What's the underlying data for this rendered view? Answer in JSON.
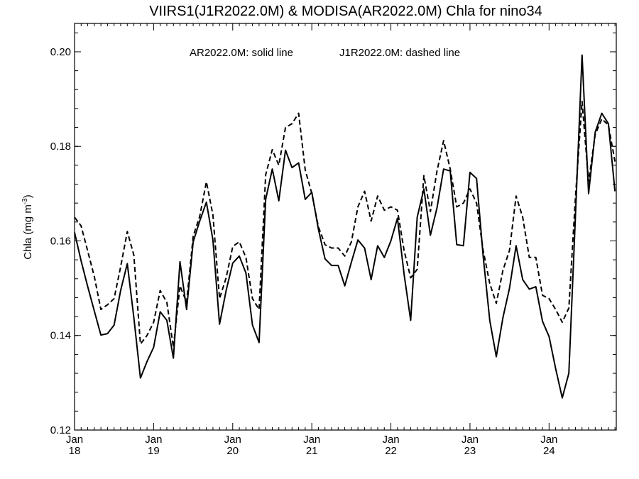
{
  "chart_data": {
    "type": "line",
    "title": "VIIRS1(J1R2022.0M) & MODISA(AR2022.0M)  Chla for nino34",
    "annotation_left": "AR2022.0M: solid line",
    "annotation_right": "J1R2022.0M: dashed line",
    "ylabel": "Chla (mg m",
    "ylabel_sup": "-3",
    "ylabel_close": ")",
    "ylim": [
      0.12,
      0.206
    ],
    "xlim": [
      2018.0,
      2024.85
    ],
    "yticks": [
      0.12,
      0.14,
      0.16,
      0.18,
      0.2
    ],
    "ytick_labels": [
      "0.12",
      "0.14",
      "0.16",
      "0.18",
      "0.20"
    ],
    "xticks": [
      {
        "x": 2018,
        "line1": "Jan",
        "line2": "18"
      },
      {
        "x": 2019,
        "line1": "Jan",
        "line2": "19"
      },
      {
        "x": 2020,
        "line1": "Jan",
        "line2": "20"
      },
      {
        "x": 2021,
        "line1": "Jan",
        "line2": "21"
      },
      {
        "x": 2022,
        "line1": "Jan",
        "line2": "22"
      },
      {
        "x": 2023,
        "line1": "Jan",
        "line2": "23"
      },
      {
        "x": 2024,
        "line1": "Jan",
        "line2": "24"
      }
    ],
    "series": [
      {
        "style": "solid",
        "x": [
          2018.0,
          2018.083,
          2018.167,
          2018.25,
          2018.333,
          2018.417,
          2018.5,
          2018.583,
          2018.667,
          2018.75,
          2018.833,
          2018.917,
          2019.0,
          2019.083,
          2019.167,
          2019.25,
          2019.333,
          2019.417,
          2019.5,
          2019.583,
          2019.667,
          2019.75,
          2019.833,
          2019.917,
          2020.0,
          2020.083,
          2020.167,
          2020.25,
          2020.333,
          2020.417,
          2020.5,
          2020.583,
          2020.667,
          2020.75,
          2020.833,
          2020.917,
          2021.0,
          2021.083,
          2021.167,
          2021.25,
          2021.333,
          2021.417,
          2021.5,
          2021.583,
          2021.667,
          2021.75,
          2021.833,
          2021.917,
          2022.0,
          2022.083,
          2022.167,
          2022.25,
          2022.333,
          2022.417,
          2022.5,
          2022.583,
          2022.667,
          2022.75,
          2022.833,
          2022.917,
          2023.0,
          2023.083,
          2023.167,
          2023.25,
          2023.333,
          2023.417,
          2023.5,
          2023.583,
          2023.667,
          2023.75,
          2023.833,
          2023.917,
          2024.0,
          2024.083,
          2024.167,
          2024.25,
          2024.333,
          2024.417,
          2024.5,
          2024.583,
          2024.667,
          2024.75,
          2024.833
        ],
        "y": [
          0.1618,
          0.1558,
          0.1503,
          0.1452,
          0.1401,
          0.1404,
          0.1422,
          0.1495,
          0.1552,
          0.1438,
          0.131,
          0.1345,
          0.1375,
          0.145,
          0.1432,
          0.1352,
          0.1556,
          0.1455,
          0.1598,
          0.1642,
          0.1682,
          0.1602,
          0.1424,
          0.1495,
          0.1553,
          0.1568,
          0.1532,
          0.1422,
          0.1385,
          0.1688,
          0.1752,
          0.1685,
          0.1792,
          0.1755,
          0.1765,
          0.1688,
          0.1703,
          0.1625,
          0.1562,
          0.1548,
          0.1548,
          0.1505,
          0.1555,
          0.1602,
          0.1585,
          0.1518,
          0.159,
          0.1565,
          0.16,
          0.1648,
          0.153,
          0.1432,
          0.165,
          0.171,
          0.1612,
          0.167,
          0.1752,
          0.1748,
          0.1592,
          0.159,
          0.1745,
          0.1732,
          0.1568,
          0.1432,
          0.1355,
          0.1438,
          0.15,
          0.159,
          0.1518,
          0.1498,
          0.1503,
          0.143,
          0.1398,
          0.133,
          0.1268,
          0.132,
          0.165,
          0.1993,
          0.17,
          0.183,
          0.187,
          0.1848,
          0.1705
        ]
      },
      {
        "style": "dashed",
        "x": [
          2018.0,
          2018.083,
          2018.167,
          2018.25,
          2018.333,
          2018.417,
          2018.5,
          2018.583,
          2018.667,
          2018.75,
          2018.833,
          2018.917,
          2019.0,
          2019.083,
          2019.167,
          2019.25,
          2019.333,
          2019.417,
          2019.5,
          2019.583,
          2019.667,
          2019.75,
          2019.833,
          2019.917,
          2020.0,
          2020.083,
          2020.167,
          2020.25,
          2020.333,
          2020.417,
          2020.5,
          2020.583,
          2020.667,
          2020.75,
          2020.833,
          2020.917,
          2021.0,
          2021.083,
          2021.167,
          2021.25,
          2021.333,
          2021.417,
          2021.5,
          2021.583,
          2021.667,
          2021.75,
          2021.833,
          2021.917,
          2022.0,
          2022.083,
          2022.167,
          2022.25,
          2022.333,
          2022.417,
          2022.5,
          2022.583,
          2022.667,
          2022.75,
          2022.833,
          2022.917,
          2023.0,
          2023.083,
          2023.167,
          2023.25,
          2023.333,
          2023.417,
          2023.5,
          2023.583,
          2023.667,
          2023.75,
          2023.833,
          2023.917,
          2024.0,
          2024.083,
          2024.167,
          2024.25,
          2024.333,
          2024.417,
          2024.5,
          2024.583,
          2024.667,
          2024.75,
          2024.833
        ],
        "y": [
          0.165,
          0.1632,
          0.1578,
          0.1525,
          0.1455,
          0.1465,
          0.1478,
          0.1545,
          0.162,
          0.157,
          0.1382,
          0.14,
          0.1428,
          0.1495,
          0.147,
          0.1375,
          0.1505,
          0.147,
          0.161,
          0.1652,
          0.1725,
          0.1655,
          0.1478,
          0.1522,
          0.1588,
          0.1598,
          0.1565,
          0.1478,
          0.1455,
          0.174,
          0.1793,
          0.176,
          0.184,
          0.1848,
          0.187,
          0.175,
          0.17,
          0.163,
          0.1592,
          0.1585,
          0.1585,
          0.1568,
          0.1598,
          0.1672,
          0.1705,
          0.1642,
          0.1695,
          0.1665,
          0.1672,
          0.1665,
          0.158,
          0.1522,
          0.154,
          0.1738,
          0.1662,
          0.1748,
          0.1812,
          0.1752,
          0.1672,
          0.168,
          0.171,
          0.168,
          0.158,
          0.151,
          0.1468,
          0.1538,
          0.158,
          0.1695,
          0.165,
          0.1565,
          0.1565,
          0.1485,
          0.1478,
          0.1455,
          0.1428,
          0.1458,
          0.169,
          0.1895,
          0.1725,
          0.1825,
          0.1858,
          0.1845,
          0.1768
        ]
      }
    ],
    "grid": false,
    "legend": "text annotation at top"
  }
}
